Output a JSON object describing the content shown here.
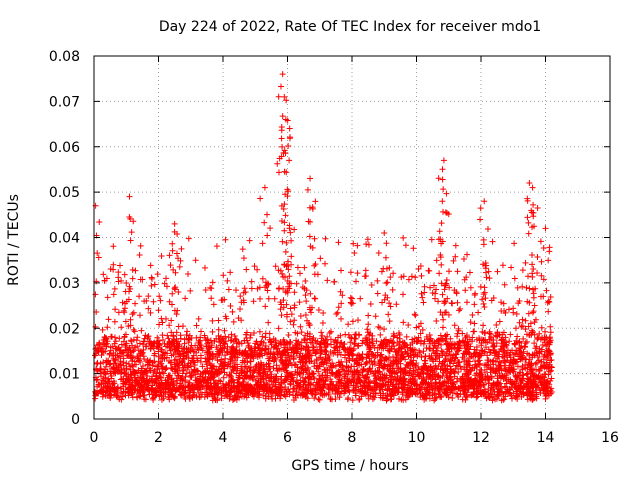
{
  "chart_data": {
    "type": "scatter",
    "title": "Day 224 of 2022, Rate Of TEC Index for receiver mdo1",
    "xlabel": "GPS time / hours",
    "ylabel": "ROTI / TECUs",
    "xlim": [
      0,
      16
    ],
    "ylim": [
      0,
      0.08
    ],
    "x_ticks": [
      "0",
      "2",
      "4",
      "6",
      "8",
      "10",
      "12",
      "14",
      "16"
    ],
    "y_ticks": [
      "0",
      "0.01",
      "0.02",
      "0.03",
      "0.04",
      "0.05",
      "0.06",
      "0.07",
      "0.08"
    ],
    "grid": true,
    "marker": "+",
    "series": [
      {
        "name": "ROTI",
        "color": "#ff0000",
        "x_range": [
          0.0,
          14.2
        ],
        "baseline_range": [
          0.004,
          0.018
        ],
        "notable_points": [
          {
            "x": 0.05,
            "y": 0.047
          },
          {
            "x": 1.1,
            "y": 0.049
          },
          {
            "x": 2.5,
            "y": 0.043
          },
          {
            "x": 5.85,
            "y": 0.076
          },
          {
            "x": 5.9,
            "y": 0.071
          },
          {
            "x": 5.95,
            "y": 0.066
          },
          {
            "x": 6.05,
            "y": 0.057
          },
          {
            "x": 5.3,
            "y": 0.051
          },
          {
            "x": 6.7,
            "y": 0.053
          },
          {
            "x": 9.0,
            "y": 0.041
          },
          {
            "x": 10.85,
            "y": 0.057
          },
          {
            "x": 10.8,
            "y": 0.048
          },
          {
            "x": 12.1,
            "y": 0.048
          },
          {
            "x": 13.5,
            "y": 0.052
          },
          {
            "x": 13.6,
            "y": 0.051
          },
          {
            "x": 14.0,
            "y": 0.042
          }
        ]
      }
    ]
  }
}
